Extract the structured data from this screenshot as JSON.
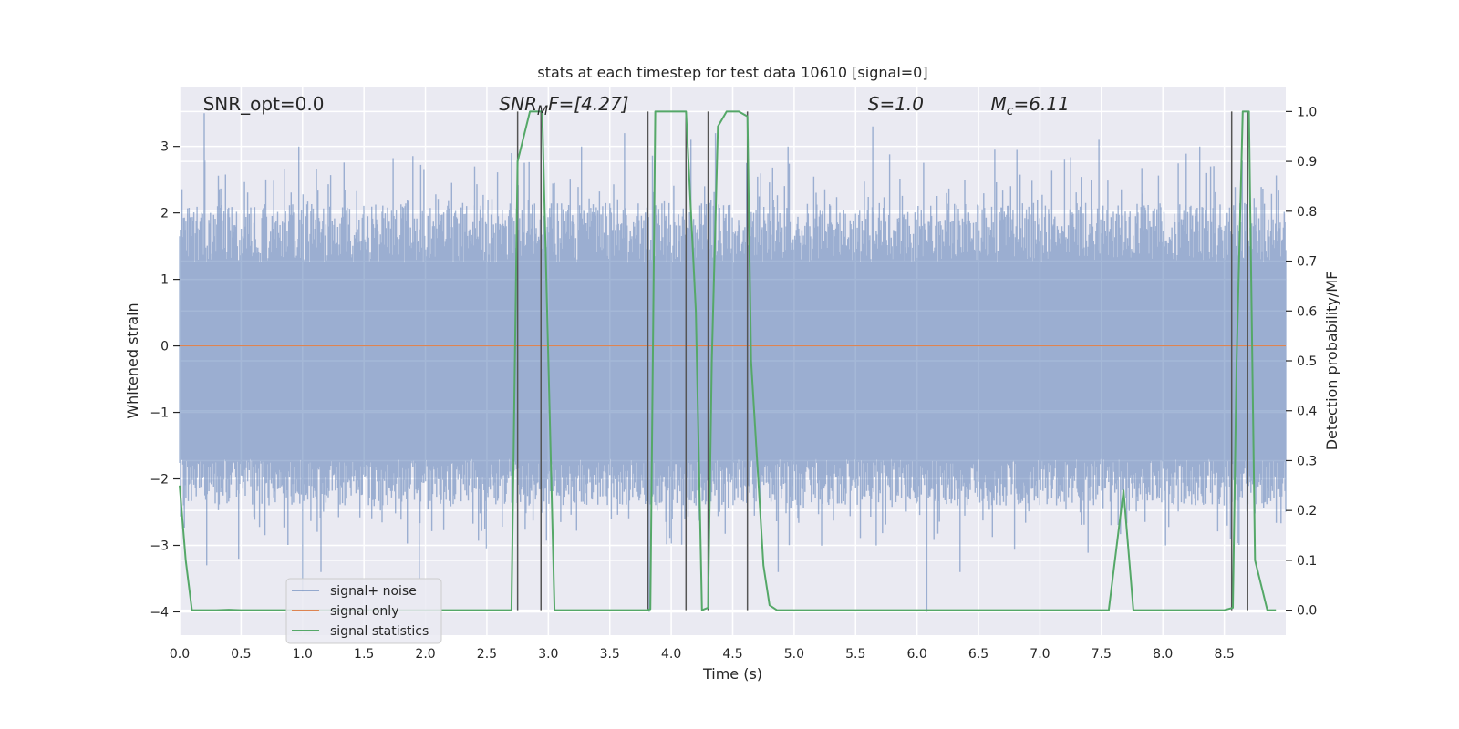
{
  "chart_data": {
    "type": "line",
    "title": "stats at each timestep for test data 10610 [signal=0]",
    "xlabel": "Time (s)",
    "ylabel": "Whitened strain",
    "y2label": "Detection probability/MF",
    "xlim": [
      0.0,
      9.0
    ],
    "ylim": [
      -4.35,
      3.9
    ],
    "y2lim": [
      -0.05,
      1.05
    ],
    "xticks": [
      "0.0",
      "0.5",
      "1.0",
      "1.5",
      "2.0",
      "2.5",
      "3.0",
      "3.5",
      "4.0",
      "4.5",
      "5.0",
      "5.5",
      "6.0",
      "6.5",
      "7.0",
      "7.5",
      "8.0",
      "8.5"
    ],
    "xtick_values": [
      0.0,
      0.5,
      1.0,
      1.5,
      2.0,
      2.5,
      3.0,
      3.5,
      4.0,
      4.5,
      5.0,
      5.5,
      6.0,
      6.5,
      7.0,
      7.5,
      8.0,
      8.5
    ],
    "yticks": [
      "−4",
      "−3",
      "−2",
      "−1",
      "0",
      "1",
      "2",
      "3"
    ],
    "ytick_values": [
      -4,
      -3,
      -2,
      -1,
      0,
      1,
      2,
      3
    ],
    "y2ticks": [
      "0.0",
      "0.1",
      "0.2",
      "0.3",
      "0.4",
      "0.5",
      "0.6",
      "0.7",
      "0.8",
      "0.9",
      "1.0"
    ],
    "y2tick_values": [
      0.0,
      0.1,
      0.2,
      0.3,
      0.4,
      0.5,
      0.6,
      0.7,
      0.8,
      0.9,
      1.0
    ],
    "grid": true,
    "legend_placement": "lower-left",
    "annotations": [
      {
        "text": "SNR_opt=0.0",
        "x": 0.19
      },
      {
        "text": "SNR",
        "sub": "M",
        "rest": "F=[4.27]",
        "x": 2.6,
        "italic": true
      },
      {
        "text": "S",
        "rest": "=1.0",
        "x": 5.6,
        "italic": true
      },
      {
        "text": "M",
        "sub": "c",
        "rest": "=6.11",
        "x": 6.6,
        "italic": true
      }
    ],
    "series": [
      {
        "name": "signal+ noise",
        "color": "#4c72b0",
        "axis": "left",
        "style": "noise",
        "band_lo": -1.7,
        "band_hi": 1.25,
        "spikes": [
          [
            0.2,
            3.5
          ],
          [
            0.22,
            -3.3
          ],
          [
            0.48,
            -3.2
          ],
          [
            0.97,
            3.0
          ],
          [
            1.0,
            -3.7
          ],
          [
            1.15,
            -3.4
          ],
          [
            1.95,
            -3.5
          ],
          [
            2.4,
            2.7
          ],
          [
            2.7,
            2.9
          ],
          [
            3.27,
            3.0
          ],
          [
            3.62,
            3.2
          ],
          [
            3.82,
            -4.0
          ],
          [
            4.16,
            3.1
          ],
          [
            4.12,
            -3.0
          ],
          [
            4.36,
            3.2
          ],
          [
            4.87,
            -3.4
          ],
          [
            4.95,
            3.0
          ],
          [
            5.64,
            3.3
          ],
          [
            6.08,
            -4.0
          ],
          [
            6.35,
            -3.4
          ],
          [
            7.2,
            2.8
          ],
          [
            7.48,
            3.1
          ],
          [
            8.3,
            3.0
          ],
          [
            8.55,
            -2.9
          ]
        ]
      },
      {
        "name": "signal only",
        "color": "#dd8452",
        "axis": "left",
        "x": [
          0.0,
          9.0
        ],
        "y": [
          0.0,
          0.0
        ]
      },
      {
        "name": "signal statistics",
        "color": "#55a868",
        "axis": "right",
        "x": [
          0.0,
          0.05,
          0.1,
          0.2,
          0.3,
          0.4,
          0.5,
          1.0,
          2.0,
          2.5,
          2.7,
          2.75,
          2.85,
          2.95,
          3.05,
          3.1,
          3.6,
          3.8,
          3.83,
          3.87,
          4.0,
          4.12,
          4.2,
          4.25,
          4.3,
          4.33,
          4.38,
          4.45,
          4.55,
          4.62,
          4.65,
          4.75,
          4.8,
          4.86,
          5.0,
          6.0,
          7.0,
          7.56,
          7.68,
          7.76,
          8.0,
          8.5,
          8.57,
          8.6,
          8.65,
          8.7,
          8.75,
          8.85,
          8.92
        ],
        "y": [
          0.25,
          0.1,
          0.0,
          0.0,
          0.0,
          0.001,
          0.0,
          0.0,
          0.0,
          0.0,
          0.0,
          0.9,
          1.0,
          1.0,
          0.0,
          0.0,
          0.0,
          0.0,
          0.002,
          1.0,
          1.0,
          1.0,
          0.6,
          0.0,
          0.005,
          0.5,
          0.97,
          1.0,
          1.0,
          0.99,
          0.5,
          0.09,
          0.01,
          0.0,
          0.0,
          0.0,
          0.0,
          0.0,
          0.24,
          0.0,
          0.0,
          0.0,
          0.005,
          0.5,
          1.0,
          1.0,
          0.1,
          0.0,
          0.0
        ]
      }
    ],
    "vlines": [
      2.75,
      2.94,
      3.81,
      4.12,
      4.3,
      4.62,
      8.56,
      8.69
    ]
  }
}
